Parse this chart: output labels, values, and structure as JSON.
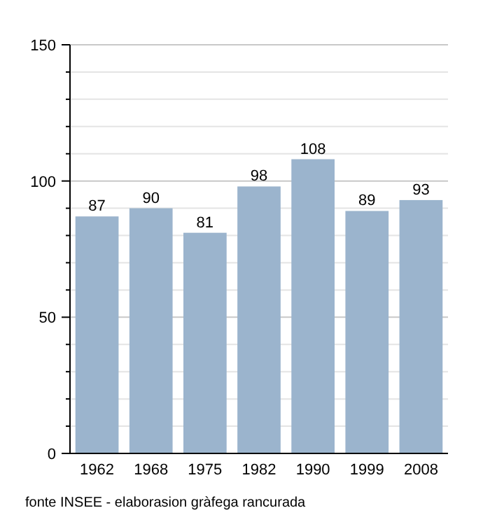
{
  "chart_data": {
    "type": "bar",
    "categories": [
      "1962",
      "1968",
      "1975",
      "1982",
      "1990",
      "1999",
      "2008"
    ],
    "values": [
      87,
      90,
      81,
      98,
      108,
      89,
      93
    ],
    "color": "#9bb4cd",
    "data_labels": true,
    "ylim": [
      0,
      150
    ],
    "yticks": [
      0,
      {
        "value": 10,
        "label": null
      },
      {
        "value": 20,
        "label": null
      },
      {
        "value": 30,
        "label": null
      },
      {
        "value": 40,
        "label": null
      },
      50,
      {
        "value": 60,
        "label": null
      },
      {
        "value": 70,
        "label": null
      },
      {
        "value": 80,
        "label": null
      },
      {
        "value": 90,
        "label": null
      },
      100,
      {
        "value": 110,
        "label": null
      },
      {
        "value": 120,
        "label": null
      },
      {
        "value": 130,
        "label": null
      },
      {
        "value": 140,
        "label": null
      },
      150
    ],
    "grid": true,
    "annotations": [
      "fonte INSEE - elaborasion gràfega rancurada"
    ]
  }
}
